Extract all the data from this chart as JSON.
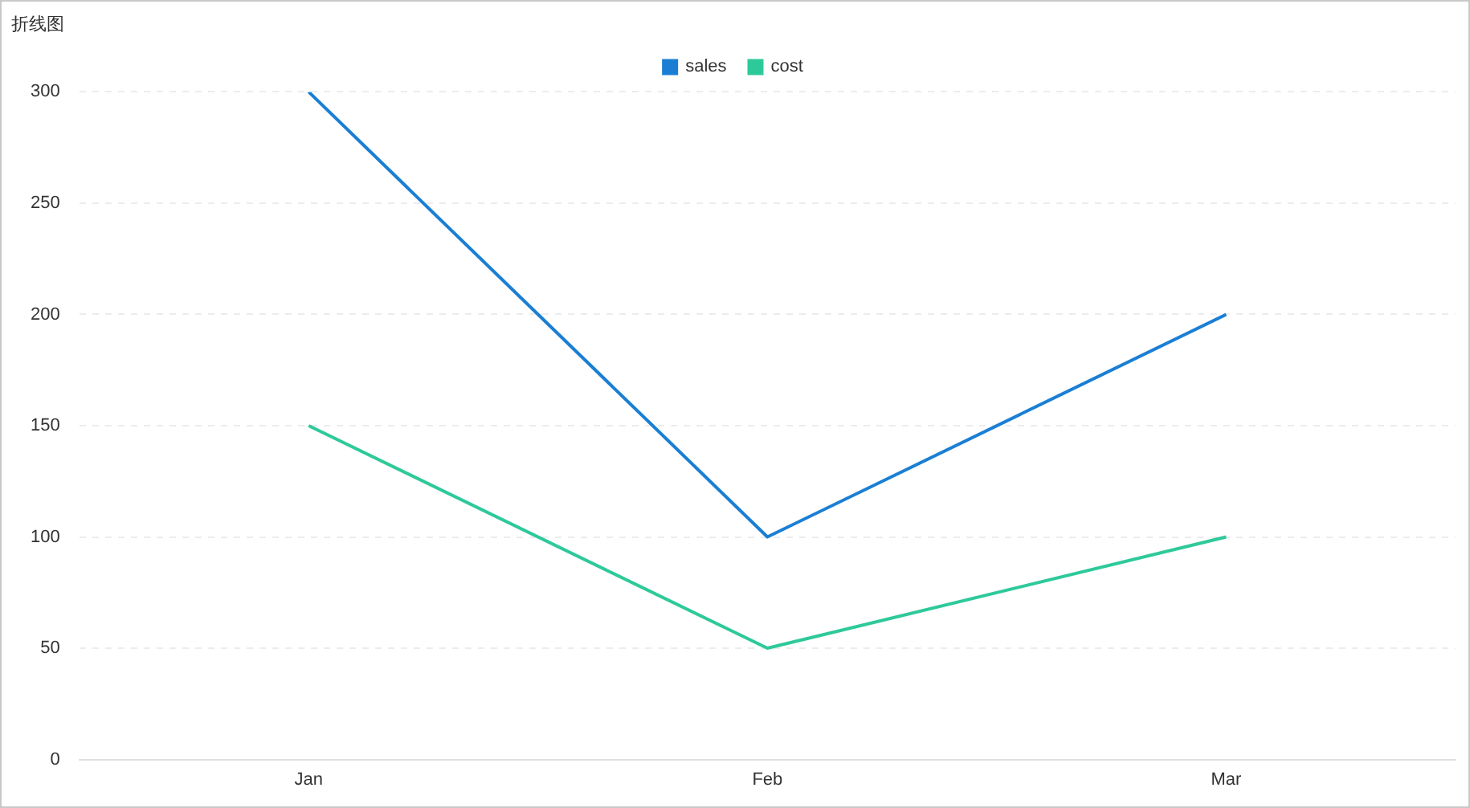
{
  "chart_data": {
    "type": "line",
    "title": "折线图",
    "categories": [
      "Jan",
      "Feb",
      "Mar"
    ],
    "series": [
      {
        "name": "sales",
        "color": "#1a7fd4",
        "values": [
          300,
          100,
          200
        ]
      },
      {
        "name": "cost",
        "color": "#2ec99a",
        "values": [
          150,
          50,
          100
        ]
      }
    ],
    "ylim": [
      0,
      300
    ],
    "yticks": [
      0,
      50,
      100,
      150,
      200,
      250,
      300
    ],
    "grid": "y",
    "legend": "top",
    "marker": "none",
    "line_style": "solid"
  }
}
